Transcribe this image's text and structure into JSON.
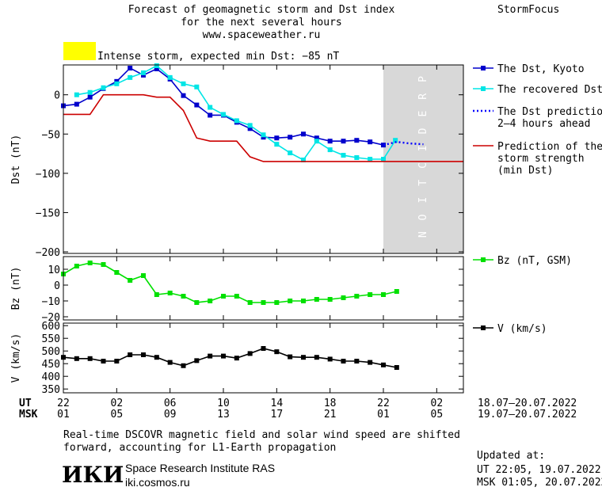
{
  "header": {
    "title_line1": "Forecast of geomagnetic storm and Dst index",
    "title_line2": "for the next several hours",
    "url": "www.spaceweather.ru",
    "brand": "StormFocus",
    "storm_label": "Intense storm, expected min Dst: −85 nT",
    "storm_color": "#ffff00"
  },
  "footer": {
    "note_line1": "Real-time DSCOVR magnetic field and solar wind speed are shifted",
    "note_line2": "forward, accounting for L1-Earth propagation",
    "logo_text": "ИКИ",
    "institute": "Space Research Institute RAS",
    "site": "iki.cosmos.ru",
    "updated_label": "Updated at:",
    "updated_ut": "UT   22:05, 19.07.2022",
    "updated_msk": "MSK 01:05, 20.07.2022"
  },
  "chart_data": {
    "type": "line",
    "prediction_label": "PREDICTION",
    "prediction_color": "#d8d8d8",
    "time_axis": {
      "ut_label": "UT",
      "msk_label": "MSK",
      "ut_ticks": [
        "22",
        "02",
        "06",
        "10",
        "14",
        "18",
        "22",
        "02"
      ],
      "msk_ticks": [
        "01",
        "05",
        "09",
        "13",
        "17",
        "21",
        "01",
        "05"
      ],
      "tick_hours": [
        -2,
        2,
        6,
        10,
        14,
        18,
        22,
        26
      ],
      "xlim_hours": [
        -2,
        28
      ],
      "prediction_start_hour": 22,
      "ut_range": "18.07–20.07.2022",
      "msk_range": "19.07–20.07.2022"
    },
    "panels": [
      {
        "ylabel": "Dst (nT)",
        "ylim": [
          -202,
          38
        ],
        "yticks": [
          0,
          -50,
          -100,
          -150,
          -200
        ],
        "series": [
          {
            "name": "The Dst, Kyoto",
            "color": "#0000cc",
            "style": "line-square",
            "x": [
              -2,
              -1,
              0,
              1,
              2,
              3,
              4,
              5,
              6,
              7,
              8,
              9,
              10,
              11,
              12,
              13,
              14,
              15,
              16,
              17,
              18,
              19,
              20,
              21,
              22
            ],
            "y": [
              -14,
              -12,
              -3,
              8,
              17,
              34,
              25,
              33,
              20,
              -1,
              -13,
              -26,
              -26,
              -35,
              -43,
              -54,
              -55,
              -54,
              -50,
              -55,
              -59,
              -59,
              -58,
              -60,
              -64
            ]
          },
          {
            "name": "The recovered Dst",
            "color": "#00e5e5",
            "style": "line-square",
            "x": [
              -1,
              0,
              1,
              2,
              3,
              4,
              5,
              6,
              7,
              8,
              9,
              10,
              11,
              12,
              13,
              14,
              15,
              16,
              17,
              18,
              19,
              20,
              21,
              22,
              22.9
            ],
            "y": [
              0,
              3,
              9,
              14,
              22,
              28,
              37,
              22,
              14,
              10,
              -16,
              -25,
              -33,
              -39,
              -51,
              -63,
              -74,
              -83,
              -59,
              -70,
              -77,
              -80,
              -82,
              -82,
              -58
            ]
          },
          {
            "name": "The Dst prediction\n2–4 hours ahead",
            "color": "#0000ff",
            "style": "dotted",
            "x": [
              22,
              23,
              24,
              25
            ],
            "y": [
              -64,
              -60,
              -62,
              -63
            ]
          },
          {
            "name": "Prediction of the\nstorm strength\n(min Dst)",
            "color": "#cc0000",
            "style": "line",
            "x": [
              -2,
              0,
              1,
              3,
              4,
              5,
              6,
              7,
              8,
              9,
              10,
              11,
              12,
              13,
              28
            ],
            "y": [
              -25,
              -25,
              0,
              0,
              0,
              -3,
              -3,
              -20,
              -55,
              -59,
              -59,
              -59,
              -79,
              -85,
              -85
            ]
          }
        ]
      },
      {
        "ylabel": "Bz (nT)",
        "ylim": [
          -22,
          18
        ],
        "yticks": [
          10,
          0,
          -10,
          -20
        ],
        "series": [
          {
            "name": "Bz (nT, GSM)",
            "color": "#00e000",
            "style": "line-square",
            "x": [
              -2,
              -1,
              0,
              1,
              2,
              3,
              4,
              5,
              6,
              7,
              8,
              9,
              10,
              11,
              12,
              13,
              14,
              15,
              16,
              17,
              18,
              19,
              20,
              21,
              22,
              23
            ],
            "y": [
              7,
              12,
              14,
              13,
              8,
              3,
              6,
              -6,
              -5,
              -7,
              -11,
              -10,
              -7,
              -7,
              -11,
              -11,
              -11,
              -10,
              -10,
              -9,
              -9,
              -8,
              -7,
              -6,
              -6,
              -4
            ]
          }
        ]
      },
      {
        "ylabel": "V (km/s)",
        "ylim": [
          335,
          610
        ],
        "yticks": [
          600,
          550,
          500,
          450,
          400,
          350
        ],
        "series": [
          {
            "name": "V (km/s)",
            "color": "#000000",
            "style": "line-square",
            "x": [
              -2,
              -1,
              0,
              1,
              2,
              3,
              4,
              5,
              6,
              7,
              8,
              9,
              10,
              11,
              12,
              13,
              14,
              15,
              16,
              17,
              18,
              19,
              20,
              21,
              22,
              23
            ],
            "y": [
              475,
              470,
              470,
              460,
              460,
              485,
              485,
              475,
              455,
              442,
              462,
              480,
              480,
              472,
              490,
              510,
              497,
              477,
              475,
              475,
              468,
              460,
              460,
              455,
              445,
              435
            ]
          }
        ]
      }
    ]
  }
}
